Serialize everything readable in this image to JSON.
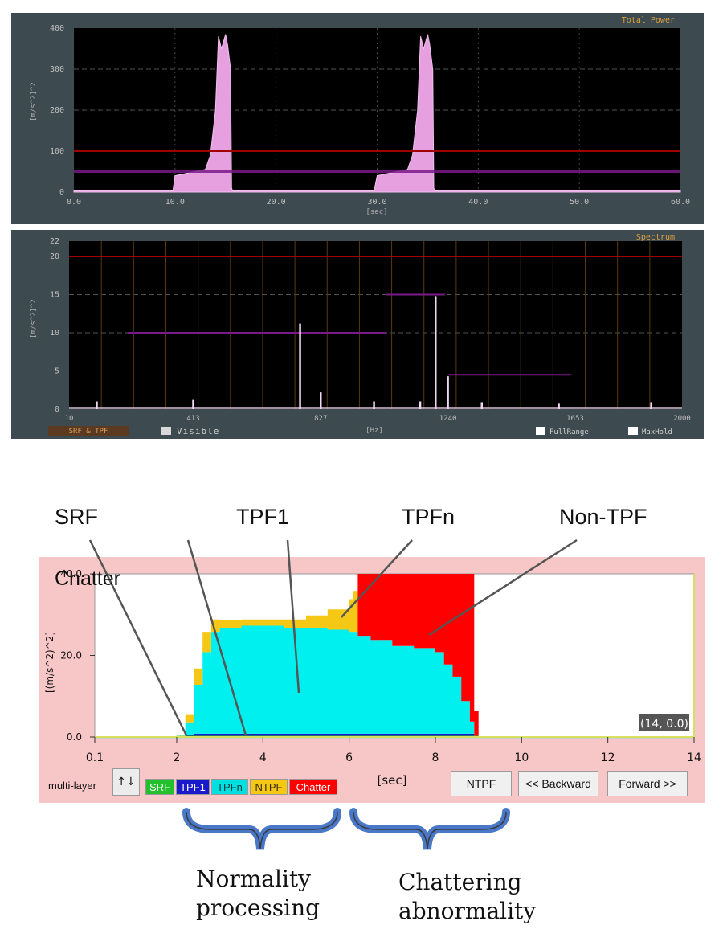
{
  "total_power": {
    "title": "Total Power",
    "ylabel": "[m/s^2]^2",
    "xlabel": "[sec]",
    "y_ticks": [
      "400",
      "300",
      "200",
      "100",
      "0"
    ],
    "x_ticks": [
      "0.0",
      "10.0",
      "20.0",
      "30.0",
      "40.0",
      "50.0",
      "60.0"
    ]
  },
  "spectrum": {
    "title": "Spectrum",
    "ylabel": "[m/s^2]^2",
    "xlabel": "[Hz]",
    "y_ticks": [
      "22",
      "20",
      "15",
      "10",
      "5",
      "0"
    ],
    "x_ticks": [
      "10",
      "413",
      "827",
      "1240",
      "1653",
      "2000"
    ],
    "mode_label": "SRF & TPF",
    "visible_label": "Visible",
    "full_range_label": "FullRange",
    "max_hold_label": "MaxHold"
  },
  "chatter_panel": {
    "title": "Chatter",
    "ylabel": "[(m/s^2)^2]",
    "xlabel": "[sec]",
    "y_ticks": [
      "40.0",
      "20.0",
      "0.0"
    ],
    "x_ticks": [
      "0.1",
      "2",
      "4",
      "6",
      "8",
      "10",
      "12",
      "14"
    ],
    "readout": "(14, 0.0)",
    "multi_layer_label": "multi-layer",
    "sort_button": "↑↓",
    "legend": {
      "srf": "SRF",
      "tpf1": "TPF1",
      "tpfn": "TPFn",
      "ntpf": "NTPF",
      "chatter": "Chatter"
    },
    "buttons": {
      "ntpf": "NTPF",
      "backward": "<< Backward",
      "forward": "Forward >>"
    }
  },
  "callouts": {
    "srf": "SRF",
    "tpf1": "TPF1",
    "tpfn": "TPFn",
    "non_tpf": "Non-TPF"
  },
  "notes": {
    "normality_line1": "Normality",
    "normality_line2": "processing",
    "chattering_line1": "Chattering",
    "chattering_line2": "abnormality"
  },
  "colors": {
    "srf": "#22c02a",
    "tpf1": "#1a1acc",
    "tpfn": "#00f0f0",
    "ntpf": "#f5c816",
    "chatter": "#ff0000",
    "total_power_fill": "#e6a0e0",
    "threshold_red": "#a00000",
    "threshold_purple": "#7a1a8a",
    "panel_bg": "#3d4a4f",
    "plot_bg": "#000000",
    "chatter_panel_bg": "#f7c6c6",
    "brace_blue": "#4a78c8"
  },
  "chart_data": [
    {
      "type": "area",
      "title": "Total Power",
      "ylabel": "[m/s^2]^2",
      "xlabel": "[sec]",
      "xlim": [
        0,
        60
      ],
      "ylim": [
        0,
        400
      ],
      "thresholds": [
        100,
        50
      ],
      "series": [
        {
          "x": [
            0,
            9.8,
            10,
            13,
            13.5,
            14,
            14.3,
            14.6,
            15,
            15.2,
            15.5,
            15.6,
            15.7,
            16,
            28,
            29.7,
            30,
            33,
            33.5,
            34,
            34.3,
            34.6,
            35,
            35.2,
            35.5,
            35.6,
            35.7,
            36,
            60
          ],
          "y": [
            3,
            3,
            40,
            55,
            90,
            200,
            380,
            350,
            385,
            360,
            300,
            10,
            3,
            3,
            3,
            3,
            40,
            55,
            90,
            200,
            380,
            350,
            385,
            360,
            300,
            10,
            3,
            3,
            3
          ]
        }
      ]
    },
    {
      "type": "line",
      "title": "Spectrum",
      "ylabel": "[m/s^2]^2",
      "xlabel": "[Hz]",
      "xlim": [
        10,
        2000
      ],
      "ylim": [
        0,
        22
      ],
      "thresholds": [
        20
      ],
      "peaks": [
        {
          "x": 100,
          "y": 1.0
        },
        {
          "x": 413,
          "y": 1.2
        },
        {
          "x": 760,
          "y": 11.2
        },
        {
          "x": 827,
          "y": 2.2
        },
        {
          "x": 1000,
          "y": 1.0
        },
        {
          "x": 1150,
          "y": 1.0
        },
        {
          "x": 1200,
          "y": 14.8
        },
        {
          "x": 1240,
          "y": 4.3
        },
        {
          "x": 1350,
          "y": 0.9
        },
        {
          "x": 1600,
          "y": 0.7
        },
        {
          "x": 1900,
          "y": 0.9
        }
      ],
      "threshold_segments": [
        {
          "x_from": 200,
          "x_to": 1040,
          "y": 10
        },
        {
          "x_from": 1040,
          "x_to": 1230,
          "y": 15
        },
        {
          "x_from": 1240,
          "x_to": 1640,
          "y": 4.5
        }
      ]
    },
    {
      "type": "area",
      "title": "Chatter",
      "ylabel": "[(m/s^2)^2]",
      "xlabel": "[sec]",
      "xlim": [
        0.1,
        14
      ],
      "ylim": [
        0,
        40
      ],
      "stacked": true,
      "x": [
        2.0,
        2.2,
        2.4,
        2.6,
        2.8,
        3.0,
        3.5,
        4.0,
        4.5,
        5.0,
        5.5,
        6.0,
        6.1,
        6.2,
        6.5,
        7.0,
        7.5,
        8.0,
        8.2,
        8.4,
        8.6,
        8.8,
        8.9,
        9.0
      ],
      "series": [
        {
          "name": "SRF",
          "values": [
            0.3,
            0.3,
            0.3,
            0.3,
            0.3,
            0.3,
            0.3,
            0.3,
            0.3,
            0.3,
            0.3,
            0.3,
            0.3,
            0.3,
            0.3,
            0.3,
            0.3,
            0.3,
            0.3,
            0.3,
            0.3,
            0.3,
            0.3,
            0
          ]
        },
        {
          "name": "TPF1",
          "values": [
            0,
            0.3,
            0.5,
            0.5,
            0.5,
            0.5,
            0.5,
            0.5,
            0.5,
            0.5,
            0.5,
            0.5,
            0.5,
            0.5,
            0.5,
            0.5,
            0.5,
            0.5,
            0.5,
            0.5,
            0.5,
            0.5,
            0,
            0
          ]
        },
        {
          "name": "TPFn",
          "values": [
            0,
            3,
            12,
            20,
            25,
            26,
            26.5,
            26.5,
            26,
            26,
            25.5,
            25,
            25,
            24,
            23,
            21.5,
            21,
            20,
            17,
            14,
            8,
            3,
            0,
            0
          ]
        },
        {
          "name": "NTPF",
          "values": [
            0,
            2,
            4,
            5,
            3,
            1.8,
            1.5,
            1.5,
            2,
            3,
            5,
            8,
            10,
            0,
            0,
            0,
            0,
            0,
            0,
            0,
            0,
            0,
            0,
            0
          ]
        },
        {
          "name": "Chatter",
          "values": [
            0,
            0,
            0,
            0,
            0,
            0,
            0,
            0,
            0,
            0,
            0,
            0,
            0,
            15.5,
            16.5,
            18,
            18.5,
            19.5,
            22.5,
            25.5,
            31.5,
            36.5,
            6,
            0
          ]
        }
      ]
    }
  ]
}
